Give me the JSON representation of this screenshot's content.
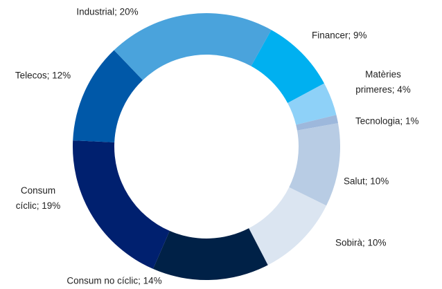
{
  "chart_data": {
    "type": "donut",
    "categories": [
      "Financer; 9%",
      "Matèries primeres; 4%",
      "Tecnologia; 1%",
      "Salut; 10%",
      "Sobirà; 10%",
      "Consum no cíclic; 14%",
      "Consum cíclic; 19%",
      "Telecos; 12%",
      "Industrial; 20%"
    ],
    "values": [
      9,
      4,
      1,
      10,
      10,
      14,
      19,
      12,
      20
    ],
    "colors": [
      "#00b0f0",
      "#8ed1f8",
      "#9db8dc",
      "#b8cce4",
      "#dbe5f1",
      "#002147",
      "#00206f",
      "#0058a8",
      "#4aa3dc"
    ]
  }
}
